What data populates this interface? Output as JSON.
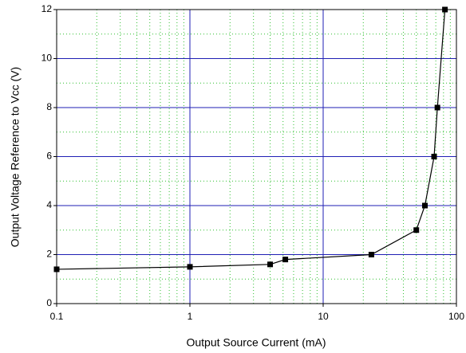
{
  "chart_data": {
    "type": "line",
    "xlabel": "Output Source Current (mA)",
    "ylabel": "Output Voltage Reference to Vcc (V)",
    "xscale": "log",
    "xlim": [
      0.1,
      100
    ],
    "xticks": [
      0.1,
      1,
      10,
      100
    ],
    "ylim": [
      0,
      12
    ],
    "yticks": [
      0,
      2,
      4,
      6,
      8,
      10,
      12
    ],
    "grid": true,
    "major_grid_color": "#1f1fb4",
    "minor_grid_color": "#2fbf2f",
    "series": [
      {
        "color": "#000000",
        "x": [
          0.1,
          1,
          4.0,
          5.2,
          23,
          50,
          58,
          68,
          72,
          82
        ],
        "values": [
          1.4,
          1.5,
          1.6,
          1.8,
          2.0,
          3.0,
          4.0,
          6.0,
          8.0,
          12.0
        ]
      }
    ]
  }
}
